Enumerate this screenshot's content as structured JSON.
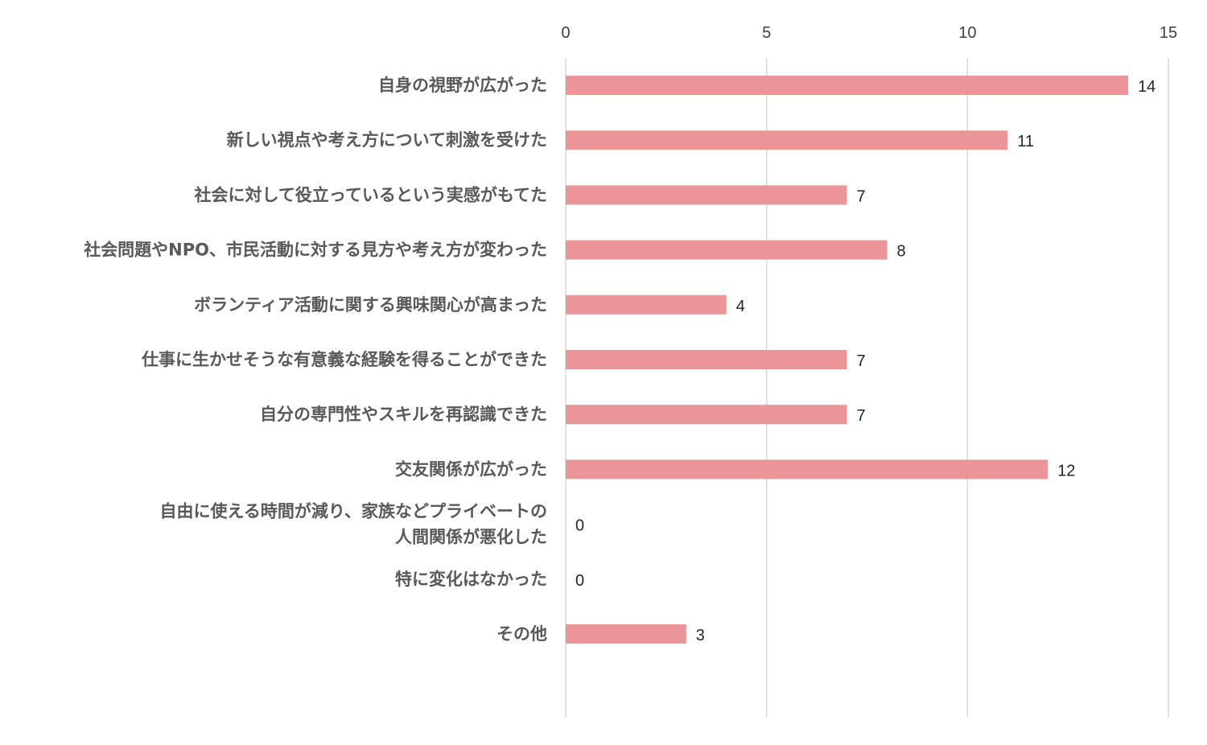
{
  "chart_data": {
    "type": "bar",
    "orientation": "horizontal",
    "categories": [
      [
        "自身の視野が広がった"
      ],
      [
        "新しい視点や考え方について刺激を受けた"
      ],
      [
        "社会に対して役立っているという実感がもてた"
      ],
      [
        "社会問題やNPO、市民活動に対する見方や考え方が変わった"
      ],
      [
        "ボランティア活動に関する興味関心が高まった"
      ],
      [
        "仕事に生かせそうな有意義な経験を得ることができた"
      ],
      [
        "自分の専門性やスキルを再認識できた"
      ],
      [
        "交友関係が広がった"
      ],
      [
        "自由に使える時間が減り、家族などプライベートの",
        "人間関係が悪化した"
      ],
      [
        "特に変化はなかった"
      ],
      [
        "その他"
      ]
    ],
    "values": [
      14,
      11,
      7,
      8,
      4,
      7,
      7,
      12,
      0,
      0,
      3
    ],
    "xlim": [
      0,
      15
    ],
    "xticks": [
      0,
      5,
      10,
      15
    ],
    "x_axis_position": "top",
    "grid": true,
    "data_labels": true,
    "bar_color": "#ea9597",
    "grid_color": "#d9d9d9",
    "label_color": "#595959"
  }
}
